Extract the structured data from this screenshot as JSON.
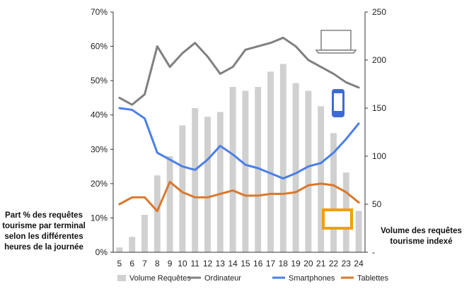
{
  "chart_data": {
    "type": "bar",
    "title": "",
    "left_axis_label": "Part % des requêtes\ntourisme par terminal\nselon les différentes\nheures de la journée",
    "right_axis_label": "Volume des requêtes\ntourisme indexé",
    "x": [
      "5",
      "6",
      "7",
      "8",
      "9",
      "10",
      "11",
      "12",
      "13",
      "14",
      "15",
      "16",
      "17",
      "18",
      "19",
      "20",
      "21",
      "22",
      "23",
      "24"
    ],
    "left_axis": {
      "ticks": [
        "0%",
        "10%",
        "20%",
        "30%",
        "40%",
        "50%",
        "60%",
        "70%"
      ],
      "range": [
        0,
        70
      ]
    },
    "right_axis": {
      "ticks": [
        "-",
        "50",
        "100",
        "150",
        "200",
        "250"
      ],
      "range": [
        0,
        250
      ]
    },
    "series": [
      {
        "name": "Volume Requêtes",
        "type": "bar",
        "axis": "right",
        "color": "#d0d0d0",
        "values": [
          5,
          16,
          39,
          80,
          100,
          132,
          150,
          141,
          146,
          172,
          168,
          172,
          188,
          196,
          176,
          168,
          152,
          124,
          83,
          43
        ]
      },
      {
        "name": "Ordinateur",
        "type": "line",
        "axis": "left",
        "color": "#808080",
        "values": [
          45,
          43,
          46,
          60,
          54,
          58,
          61,
          57,
          52,
          54,
          59,
          60,
          61,
          62.5,
          60,
          56,
          54,
          52,
          49.5,
          48
        ]
      },
      {
        "name": "Smartphones",
        "type": "line",
        "axis": "left",
        "color": "#4a7fe6",
        "values": [
          42,
          41.5,
          39,
          29,
          27,
          25,
          24,
          27,
          31,
          28.5,
          25.5,
          24.5,
          23,
          21.5,
          23,
          25,
          26,
          29,
          33,
          37.5
        ]
      },
      {
        "name": "Tablettes",
        "type": "line",
        "axis": "left",
        "color": "#d9782d",
        "values": [
          14,
          16,
          16,
          12,
          20.5,
          17.5,
          16,
          16,
          17,
          18,
          16.5,
          16.5,
          17,
          17,
          17.5,
          19.5,
          20,
          19.5,
          17.5,
          14.5
        ]
      }
    ],
    "legend": {
      "position": "bottom"
    },
    "grid": false
  },
  "icons": {
    "laptop": "laptop-icon",
    "smartphone": "smartphone-icon",
    "tablet": "tablet-icon"
  },
  "colors": {
    "laptop": "#808080",
    "smartphone": "#3d6bd6",
    "tablet": "#f0a000"
  }
}
